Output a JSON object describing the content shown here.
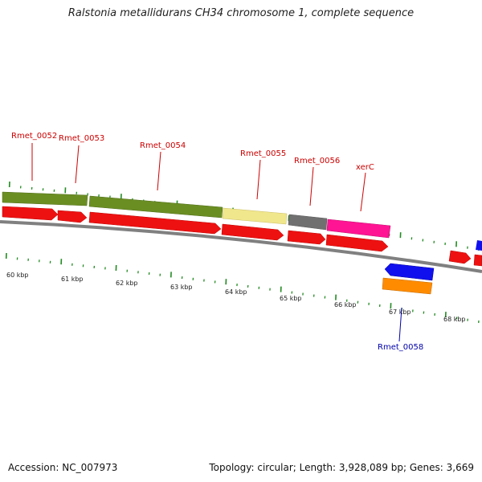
{
  "title": "Ralstonia metallidurans CH34 chromosome 1, complete sequence",
  "footer": {
    "accession": "Accession: NC_007973",
    "summary": "Topology: circular; Length: 3,928,089 bp; Genes: 3,669"
  },
  "scale_labels": [
    "60 kbp",
    "61 kbp",
    "62 kbp",
    "63 kbp",
    "64 kbp",
    "65 kbp",
    "66 kbp",
    "67 kbp",
    "68 kbp"
  ],
  "gene_labels": [
    {
      "text": "Rmet_0052",
      "color": "#cc0000"
    },
    {
      "text": "Rmet_0053",
      "color": "#cc0000"
    },
    {
      "text": "Rmet_0054",
      "color": "#cc0000"
    },
    {
      "text": "Rmet_0055",
      "color": "#cc0000"
    },
    {
      "text": "Rmet_0056",
      "color": "#cc0000"
    },
    {
      "text": "xerC",
      "color": "#cc0000"
    },
    {
      "text": "Rmet_0058",
      "color": "#0000aa"
    }
  ],
  "colors": {
    "cds_red": "#ee1111",
    "olive": "#6b8e23",
    "khaki": "#f0e68c",
    "gray": "#707070",
    "pink": "#ff1493",
    "blue": "#1010ee",
    "orange": "#ff8c00",
    "backbone": "#808080",
    "tick": "#228b22"
  }
}
